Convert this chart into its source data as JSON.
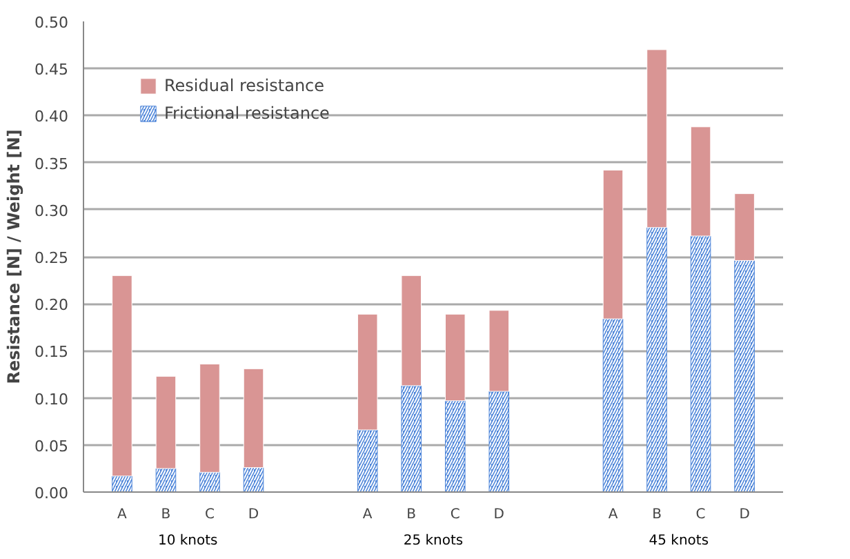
{
  "chart_data": {
    "type": "bar",
    "stacked": true,
    "ylabel": "Resistance [N] / Weight [N]",
    "categories": [
      "A",
      "B",
      "C",
      "D",
      "A",
      "B",
      "C",
      "D",
      "A",
      "B",
      "C",
      "D"
    ],
    "annotations": [
      "10 knots",
      "25 knots",
      "45 knots"
    ],
    "series": [
      {
        "name": "Frictional resistance",
        "color": "#4f86d9",
        "values": [
          0.017,
          0.025,
          0.021,
          0.026,
          0.066,
          0.113,
          0.097,
          0.107,
          0.184,
          0.281,
          0.272,
          0.246
        ]
      },
      {
        "name": "Residual resistance",
        "color": "#d99594",
        "values": [
          0.213,
          0.098,
          0.115,
          0.105,
          0.123,
          0.117,
          0.092,
          0.086,
          0.158,
          0.189,
          0.116,
          0.071
        ]
      }
    ],
    "ylim": [
      0,
      0.5
    ],
    "yticks": [
      {
        "value": 0,
        "label": "0.00"
      },
      {
        "value": 0.05,
        "label": "0.05"
      },
      {
        "value": 0.1,
        "label": "0.10"
      },
      {
        "value": 0.15,
        "label": "0.15"
      },
      {
        "value": 0.2,
        "label": "0.20"
      },
      {
        "value": 0.25,
        "label": "0.25"
      },
      {
        "value": 0.3,
        "label": "0.30"
      },
      {
        "value": 0.35,
        "label": "0.35"
      },
      {
        "value": 0.4,
        "label": "0.40"
      },
      {
        "value": 0.45,
        "label": "0.45"
      },
      {
        "value": 0.5,
        "label": "0.50"
      }
    ],
    "grid": "y",
    "legend": "top left"
  }
}
